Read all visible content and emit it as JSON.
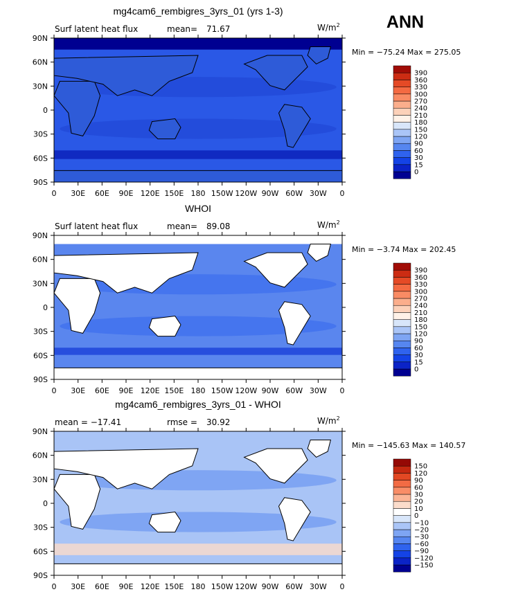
{
  "season": "ANN",
  "units_base": "W/m",
  "units_exp": "2",
  "x_ticks": [
    "0",
    "30E",
    "60E",
    "90E",
    "120E",
    "150E",
    "180",
    "150W",
    "120W",
    "90W",
    "60W",
    "30W",
    "0"
  ],
  "y_ticks": [
    "90N",
    "60N",
    "30N",
    "0",
    "30S",
    "60S",
    "90S"
  ],
  "colors": {
    "abs": [
      "#000091",
      "#0b23c7",
      "#1443e6",
      "#2f63ee",
      "#5686f0",
      "#7ea5f3",
      "#aac5f7",
      "#d8e6fa",
      "#fff2e8",
      "#fcd1b9",
      "#fbae8c",
      "#f98b64",
      "#f46a42",
      "#e54a26",
      "#cc2c13",
      "#a10c06"
    ],
    "diff": [
      "#000091",
      "#0b23c7",
      "#1443e6",
      "#2f63ee",
      "#5686f0",
      "#7ea5f3",
      "#aac5f7",
      "#d8e6fa",
      "#ffffff",
      "#fbdccb",
      "#fbb596",
      "#f98d67",
      "#f26b44",
      "#e24823",
      "#c42810",
      "#950905"
    ]
  },
  "panels": [
    {
      "title": "mg4cam6_rembigres_3yrs_01 (yrs 1-3)",
      "left_label": "Surf latent heat flux",
      "mid_label": "mean=",
      "mid_value": "71.67",
      "stats": "Min = −75.24 Max = 275.05",
      "cbar_labels": [
        "390",
        "360",
        "330",
        "300",
        "270",
        "240",
        "210",
        "180",
        "150",
        "120",
        "90",
        "60",
        "30",
        "15",
        "0"
      ]
    },
    {
      "title": "WHOI",
      "left_label": "Surf latent heat flux",
      "mid_label": "mean=",
      "mid_value": "89.08",
      "stats": "Min = −3.74 Max = 202.45",
      "cbar_labels": [
        "390",
        "360",
        "330",
        "300",
        "270",
        "240",
        "210",
        "180",
        "150",
        "120",
        "90",
        "60",
        "30",
        "15",
        "0"
      ]
    },
    {
      "title": "mg4cam6_rembigres_3yrs_01 - WHOI",
      "left_label": "mean = −17.41",
      "mid_label": "rmse =",
      "mid_value": "30.92",
      "stats": "Min = −145.63 Max = 140.57",
      "cbar_labels": [
        "150",
        "120",
        "90",
        "60",
        "30",
        "20",
        "10",
        "0",
        "−10",
        "−20",
        "−30",
        "−60",
        "−90",
        "−120",
        "−150"
      ]
    }
  ],
  "chart_data": [
    {
      "type": "heatmap",
      "title": "mg4cam6_rembigres_3yrs_01 (yrs 1-3)",
      "variable": "Surf latent heat flux",
      "units": "W/m2",
      "mean": 71.67,
      "min": -75.24,
      "max": 275.05,
      "levels": [
        0,
        15,
        30,
        60,
        90,
        120,
        150,
        180,
        210,
        240,
        270,
        300,
        330,
        360,
        390
      ],
      "xlim": [
        0,
        360
      ],
      "ylim": [
        -90,
        90
      ]
    },
    {
      "type": "heatmap",
      "title": "WHOI",
      "variable": "Surf latent heat flux",
      "units": "W/m2",
      "mean": 89.08,
      "min": -3.74,
      "max": 202.45,
      "levels": [
        0,
        15,
        30,
        60,
        90,
        120,
        150,
        180,
        210,
        240,
        270,
        300,
        330,
        360,
        390
      ],
      "xlim": [
        0,
        360
      ],
      "ylim": [
        -90,
        90
      ]
    },
    {
      "type": "heatmap",
      "title": "mg4cam6_rembigres_3yrs_01 - WHOI",
      "units": "W/m2",
      "mean": -17.41,
      "rmse": 30.92,
      "min": -145.63,
      "max": 140.57,
      "levels": [
        -150,
        -120,
        -90,
        -60,
        -30,
        -20,
        -10,
        0,
        10,
        20,
        30,
        60,
        90,
        120,
        150
      ],
      "xlim": [
        0,
        360
      ],
      "ylim": [
        -90,
        90
      ]
    }
  ]
}
